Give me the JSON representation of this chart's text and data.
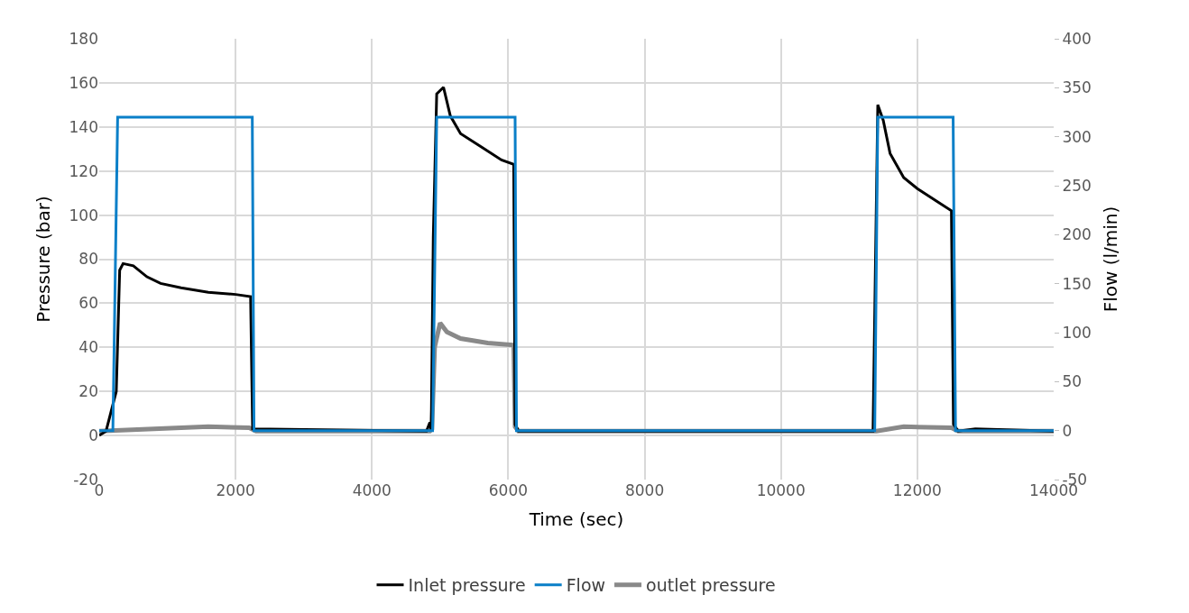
{
  "chart_data": {
    "type": "line",
    "xlabel": "Time (sec)",
    "ylabel": "Pressure (bar)",
    "y2label": "Flow (l/min)",
    "xlim": [
      0,
      14000
    ],
    "xticks": [
      0,
      2000,
      4000,
      6000,
      8000,
      10000,
      12000,
      14000
    ],
    "ylim": [
      -20,
      180
    ],
    "yticks": [
      -20,
      0,
      20,
      40,
      60,
      80,
      100,
      120,
      140,
      160,
      180
    ],
    "y2lim": [
      -50,
      400
    ],
    "y2ticks": [
      -50,
      0,
      50,
      100,
      150,
      200,
      250,
      300,
      350,
      400
    ],
    "grid": true,
    "legend": "bottom",
    "marker": "none",
    "line_style": "solid",
    "series": [
      {
        "name": "Inlet pressure",
        "color": "#000000",
        "x": [
          0,
          100,
          250,
          300,
          350,
          500,
          700,
          900,
          1200,
          1600,
          2000,
          2220,
          2250,
          4800,
          4850,
          4870,
          4900,
          4950,
          5050,
          5150,
          5300,
          5600,
          5900,
          6080,
          6100,
          6150,
          11350,
          11420,
          11500,
          11600,
          11800,
          12000,
          12300,
          12500,
          12530,
          12600,
          12850,
          14000
        ],
        "values": [
          0,
          2,
          20,
          75,
          78,
          77,
          72,
          69,
          67,
          65,
          64,
          63,
          3,
          2,
          6,
          2,
          90,
          155,
          158,
          145,
          137,
          131,
          125,
          123,
          5,
          2,
          2,
          150,
          143,
          128,
          117,
          112,
          106,
          102,
          5,
          2,
          3,
          2
        ]
      },
      {
        "name": "Flow",
        "color": "#0a7fc8",
        "axis": "y2",
        "x": [
          0,
          200,
          270,
          2245,
          2270,
          4890,
          4950,
          6100,
          6120,
          11375,
          11420,
          12525,
          12560,
          14000
        ],
        "values": [
          0,
          0,
          320,
          320,
          0,
          0,
          320,
          320,
          0,
          0,
          320,
          320,
          0,
          0
        ]
      },
      {
        "name": "outlet pressure",
        "color": "#898989",
        "x": [
          0,
          800,
          1600,
          2200,
          2300,
          4850,
          4880,
          4920,
          5000,
          5100,
          5300,
          5700,
          6080,
          6100,
          6150,
          11400,
          11800,
          12500,
          12600,
          14000
        ],
        "values": [
          2,
          3,
          4,
          3.5,
          2,
          2,
          3,
          40,
          51,
          47,
          44,
          42,
          41,
          4,
          2,
          2,
          4,
          3.5,
          2,
          2
        ]
      }
    ]
  }
}
